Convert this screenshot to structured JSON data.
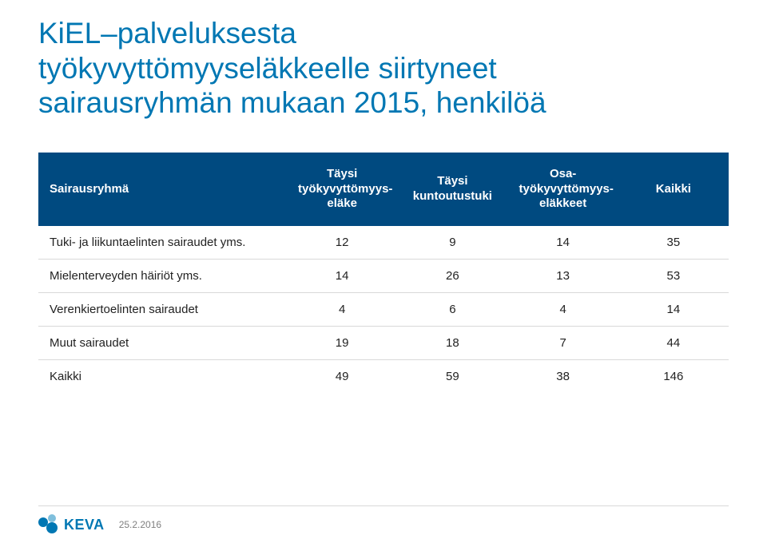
{
  "title": {
    "line1": "KiEL–palveluksesta",
    "line2": "työkyvyttömyyseläkkeelle siirtyneet",
    "line3": "sairausryhmän mukaan 2015, henkilöä",
    "color": "#0077b3",
    "fontsize": 37
  },
  "table": {
    "header_bg": "#004a80",
    "header_fg": "#ffffff",
    "border_color": "#d9d9d9",
    "body_fontsize": 15,
    "columns": [
      {
        "key": "label",
        "text": "Sairausryhmä",
        "width_pct": 36,
        "align": "left"
      },
      {
        "key": "full",
        "text": "Täysi\ntyökyvyttömyys-\neläke",
        "width_pct": 16,
        "align": "center"
      },
      {
        "key": "rehab",
        "text": "Täysi\nkuntoutustuki",
        "width_pct": 16,
        "align": "center"
      },
      {
        "key": "osa",
        "text": "Osa-\ntyökyvyttömyys-\neläkkeet",
        "width_pct": 16,
        "align": "center"
      },
      {
        "key": "total",
        "text": "Kaikki",
        "width_pct": 16,
        "align": "center"
      }
    ],
    "rows": [
      {
        "label": "Tuki- ja liikuntaelinten sairaudet yms.",
        "full": 12,
        "rehab": 9,
        "osa": 14,
        "total": 35
      },
      {
        "label": "Mielenterveyden häiriöt yms.",
        "full": 14,
        "rehab": 26,
        "osa": 13,
        "total": 53
      },
      {
        "label": "Verenkiertoelinten sairaudet",
        "full": 4,
        "rehab": 6,
        "osa": 4,
        "total": 14
      },
      {
        "label": "Muut sairaudet",
        "full": 19,
        "rehab": 18,
        "osa": 7,
        "total": 44
      },
      {
        "label": "Kaikki",
        "full": 49,
        "rehab": 59,
        "osa": 38,
        "total": 146
      }
    ]
  },
  "footer": {
    "logo_text": "KEVA",
    "date": "25.2.2016",
    "date_color": "#808080",
    "logo_color": "#0077b3"
  }
}
